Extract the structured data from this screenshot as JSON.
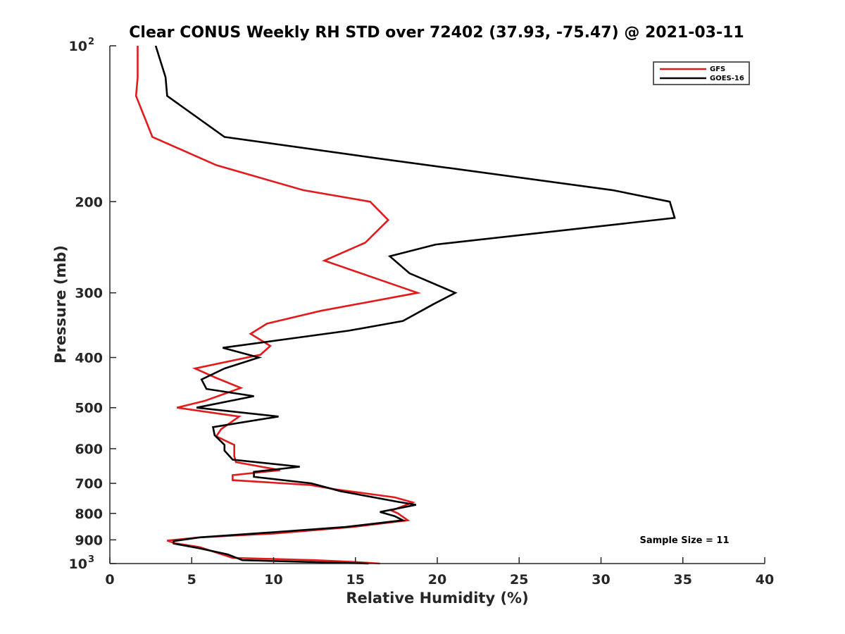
{
  "chart_data": {
    "type": "line",
    "title": "Clear CONUS Weekly RH STD over 72402 (37.93, -75.47) @ 2021-03-11",
    "xlabel": "Relative Humidity (%)",
    "ylabel": "Pressure (mb)",
    "xlim": [
      0,
      40
    ],
    "ylim": [
      100,
      1000
    ],
    "yscale": "log",
    "yreversed": true,
    "grid": false,
    "x_ticks": [
      {
        "value": 0,
        "label": "0"
      },
      {
        "value": 5,
        "label": "5"
      },
      {
        "value": 10,
        "label": "10"
      },
      {
        "value": 15,
        "label": "15"
      },
      {
        "value": 20,
        "label": "20"
      },
      {
        "value": 25,
        "label": "25"
      },
      {
        "value": 30,
        "label": "30"
      },
      {
        "value": 35,
        "label": "35"
      },
      {
        "value": 40,
        "label": "40"
      }
    ],
    "y_ticks": [
      {
        "value": 100,
        "label": "10",
        "sup": "2"
      },
      {
        "value": 200,
        "label": "200",
        "sup": ""
      },
      {
        "value": 300,
        "label": "300",
        "sup": ""
      },
      {
        "value": 400,
        "label": "400",
        "sup": ""
      },
      {
        "value": 500,
        "label": "500",
        "sup": ""
      },
      {
        "value": 600,
        "label": "600",
        "sup": ""
      },
      {
        "value": 700,
        "label": "700",
        "sup": ""
      },
      {
        "value": 800,
        "label": "800",
        "sup": ""
      },
      {
        "value": 900,
        "label": "900",
        "sup": ""
      },
      {
        "value": 1000,
        "label": "10",
        "sup": "3"
      }
    ],
    "legend_position": "top-right",
    "annotation": "Sample Size = 11",
    "series": [
      {
        "name": "GFS",
        "color": "#e31a1c",
        "points": [
          [
            1.7,
            100
          ],
          [
            1.7,
            115
          ],
          [
            1.6,
            125
          ],
          [
            2.6,
            150
          ],
          [
            6.5,
            170
          ],
          [
            11.8,
            190
          ],
          [
            15.9,
            200
          ],
          [
            17.0,
            217
          ],
          [
            15.6,
            240
          ],
          [
            13.1,
            260
          ],
          [
            18.8,
            300
          ],
          [
            12.9,
            325
          ],
          [
            9.6,
            344
          ],
          [
            8.6,
            360
          ],
          [
            9.8,
            380
          ],
          [
            9.2,
            395
          ],
          [
            5.2,
            420
          ],
          [
            6.5,
            438
          ],
          [
            8.0,
            458
          ],
          [
            5.8,
            485
          ],
          [
            4.1,
            500
          ],
          [
            7.9,
            520
          ],
          [
            6.8,
            550
          ],
          [
            6.5,
            568
          ],
          [
            7.6,
            590
          ],
          [
            7.6,
            620
          ],
          [
            7.7,
            637
          ],
          [
            10.4,
            660
          ],
          [
            7.5,
            675
          ],
          [
            7.5,
            690
          ],
          [
            12.2,
            705
          ],
          [
            13.9,
            720
          ],
          [
            17.4,
            745
          ],
          [
            18.5,
            762
          ],
          [
            17.2,
            790
          ],
          [
            17.6,
            800
          ],
          [
            18.2,
            825
          ],
          [
            14.8,
            850
          ],
          [
            10.0,
            875
          ],
          [
            5.5,
            890
          ],
          [
            3.5,
            903
          ],
          [
            4.0,
            914
          ],
          [
            5.5,
            930
          ],
          [
            7.5,
            975
          ],
          [
            12.5,
            985
          ],
          [
            15.0,
            993
          ],
          [
            16.5,
            1000
          ]
        ]
      },
      {
        "name": "GOES-16",
        "color": "#000000",
        "points": [
          [
            2.8,
            100
          ],
          [
            3.4,
            115
          ],
          [
            3.5,
            125
          ],
          [
            7.0,
            150
          ],
          [
            16.4,
            165
          ],
          [
            30.7,
            190
          ],
          [
            34.2,
            200
          ],
          [
            34.5,
            215
          ],
          [
            19.9,
            242
          ],
          [
            17.1,
            255
          ],
          [
            18.3,
            275
          ],
          [
            21.1,
            300
          ],
          [
            19.8,
            315
          ],
          [
            17.9,
            340
          ],
          [
            14.6,
            355
          ],
          [
            6.9,
            383
          ],
          [
            9.1,
            400
          ],
          [
            7.0,
            420
          ],
          [
            5.6,
            441
          ],
          [
            5.9,
            460
          ],
          [
            8.8,
            475
          ],
          [
            5.3,
            500
          ],
          [
            10.3,
            520
          ],
          [
            6.3,
            545
          ],
          [
            6.4,
            565
          ],
          [
            7.0,
            590
          ],
          [
            7.0,
            605
          ],
          [
            7.5,
            630
          ],
          [
            11.6,
            650
          ],
          [
            8.8,
            665
          ],
          [
            8.8,
            680
          ],
          [
            12.3,
            700
          ],
          [
            14.1,
            725
          ],
          [
            17.6,
            760
          ],
          [
            18.7,
            770
          ],
          [
            16.5,
            795
          ],
          [
            17.4,
            810
          ],
          [
            17.9,
            825
          ],
          [
            14.4,
            850
          ],
          [
            10.0,
            870
          ],
          [
            5.5,
            890
          ],
          [
            3.9,
            905
          ],
          [
            3.9,
            915
          ],
          [
            5.5,
            935
          ],
          [
            7.2,
            960
          ],
          [
            8.1,
            985
          ],
          [
            15.8,
            1000
          ]
        ]
      }
    ]
  }
}
